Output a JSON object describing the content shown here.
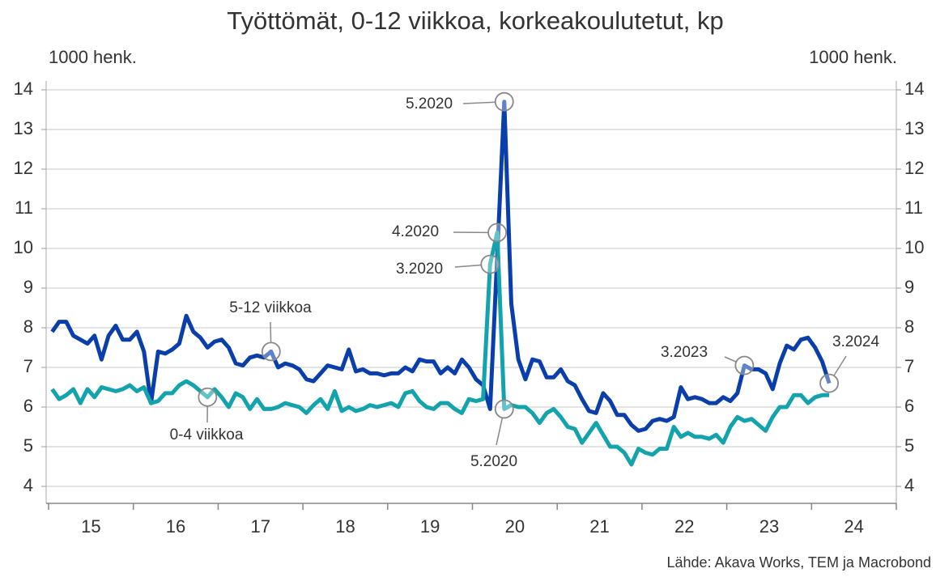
{
  "chart_data": {
    "type": "line",
    "title": "Työttömät, 0-12 viikkoa, korkeakoulutetut, kp",
    "y_label": "1000 henk.",
    "y2_label": "1000 henk.",
    "source": "Lähde: Akava Works, TEM ja Macrobond",
    "xlim": [
      2015,
      2025
    ],
    "xticks": [
      2015,
      2016,
      2017,
      2018,
      2019,
      2020,
      2021,
      2022,
      2023,
      2024,
      2025
    ],
    "xtick_labels": [
      {
        "value": 2015.5,
        "label": "15"
      },
      {
        "value": 2016.5,
        "label": "16"
      },
      {
        "value": 2017.5,
        "label": "17"
      },
      {
        "value": 2018.5,
        "label": "18"
      },
      {
        "value": 2019.5,
        "label": "19"
      },
      {
        "value": 2020.5,
        "label": "20"
      },
      {
        "value": 2021.5,
        "label": "21"
      },
      {
        "value": 2022.5,
        "label": "22"
      },
      {
        "value": 2023.5,
        "label": "23"
      },
      {
        "value": 2024.5,
        "label": "24"
      }
    ],
    "ylim": [
      4,
      14
    ],
    "yticks": [
      4,
      5,
      6,
      7,
      8,
      9,
      10,
      11,
      12,
      13,
      14
    ],
    "y2lim": [
      4,
      14
    ],
    "y2ticks": [
      4,
      5,
      6,
      7,
      8,
      9,
      10,
      11,
      12,
      13,
      14
    ],
    "grid": true,
    "x": [
      2015.042,
      2015.125,
      2015.208,
      2015.292,
      2015.375,
      2015.458,
      2015.542,
      2015.625,
      2015.708,
      2015.792,
      2015.875,
      2015.958,
      2016.042,
      2016.125,
      2016.208,
      2016.292,
      2016.375,
      2016.458,
      2016.542,
      2016.625,
      2016.708,
      2016.792,
      2016.875,
      2016.958,
      2017.042,
      2017.125,
      2017.208,
      2017.292,
      2017.375,
      2017.458,
      2017.542,
      2017.625,
      2017.708,
      2017.792,
      2017.875,
      2017.958,
      2018.042,
      2018.125,
      2018.208,
      2018.292,
      2018.375,
      2018.458,
      2018.542,
      2018.625,
      2018.708,
      2018.792,
      2018.875,
      2018.958,
      2019.042,
      2019.125,
      2019.208,
      2019.292,
      2019.375,
      2019.458,
      2019.542,
      2019.625,
      2019.708,
      2019.792,
      2019.875,
      2019.958,
      2020.042,
      2020.125,
      2020.208,
      2020.292,
      2020.375,
      2020.458,
      2020.542,
      2020.625,
      2020.708,
      2020.792,
      2020.875,
      2020.958,
      2021.042,
      2021.125,
      2021.208,
      2021.292,
      2021.375,
      2021.458,
      2021.542,
      2021.625,
      2021.708,
      2021.792,
      2021.875,
      2021.958,
      2022.042,
      2022.125,
      2022.208,
      2022.292,
      2022.375,
      2022.458,
      2022.542,
      2022.625,
      2022.708,
      2022.792,
      2022.875,
      2022.958,
      2023.042,
      2023.125,
      2023.208,
      2023.292,
      2023.375,
      2023.458,
      2023.542,
      2023.625,
      2023.708,
      2023.792,
      2023.875,
      2023.958,
      2024.042,
      2024.125,
      2024.208
    ],
    "series": [
      {
        "name": "5-12 viikkoa",
        "color": "#0a3fab",
        "values": [
          7.9,
          8.15,
          8.15,
          7.8,
          7.7,
          7.6,
          7.8,
          7.2,
          7.8,
          8.05,
          7.7,
          7.7,
          7.9,
          7.4,
          6.1,
          7.4,
          7.35,
          7.45,
          7.6,
          8.3,
          7.9,
          7.75,
          7.5,
          7.65,
          7.7,
          7.5,
          7.1,
          7.05,
          7.25,
          7.3,
          7.25,
          7.4,
          7.0,
          7.1,
          7.05,
          6.95,
          6.7,
          6.65,
          6.85,
          7.05,
          7.0,
          6.95,
          7.45,
          6.9,
          6.95,
          6.85,
          6.85,
          6.8,
          6.85,
          6.85,
          7.0,
          6.9,
          7.2,
          7.15,
          7.15,
          6.85,
          7.0,
          6.85,
          7.2,
          7.0,
          6.7,
          6.55,
          5.95,
          9.8,
          13.7,
          8.6,
          7.2,
          6.7,
          7.2,
          7.15,
          6.75,
          6.75,
          6.95,
          6.65,
          6.55,
          6.2,
          5.9,
          5.85,
          6.35,
          6.15,
          5.8,
          5.8,
          5.55,
          5.4,
          5.45,
          5.65,
          5.7,
          5.65,
          5.75,
          6.5,
          6.2,
          6.25,
          6.2,
          6.1,
          6.1,
          6.25,
          6.15,
          6.35,
          7.05,
          6.95,
          6.95,
          6.85,
          6.45,
          7.1,
          7.55,
          7.45,
          7.7,
          7.75,
          7.5,
          7.15,
          6.6
        ]
      },
      {
        "name": "0-4 viikkoa",
        "color": "#12a3ac",
        "values": [
          6.45,
          6.2,
          6.3,
          6.45,
          6.1,
          6.45,
          6.25,
          6.5,
          6.45,
          6.4,
          6.45,
          6.55,
          6.4,
          6.5,
          6.1,
          6.15,
          6.35,
          6.35,
          6.55,
          6.65,
          6.55,
          6.4,
          6.25,
          6.45,
          6.25,
          6.0,
          6.35,
          6.25,
          5.95,
          6.2,
          5.95,
          5.95,
          6.0,
          6.1,
          6.05,
          6.0,
          5.85,
          6.05,
          6.2,
          5.95,
          6.4,
          5.9,
          6.0,
          5.9,
          5.95,
          6.05,
          6.0,
          6.05,
          6.1,
          6.0,
          6.35,
          6.4,
          6.15,
          6.0,
          5.95,
          6.1,
          6.1,
          5.95,
          5.85,
          6.2,
          6.15,
          6.2,
          9.6,
          10.4,
          5.95,
          6.05,
          6.0,
          6.0,
          5.85,
          5.6,
          5.85,
          5.95,
          5.75,
          5.5,
          5.45,
          5.1,
          5.35,
          5.6,
          5.3,
          5.0,
          5.0,
          4.85,
          4.55,
          4.95,
          4.85,
          4.8,
          4.95,
          4.95,
          5.5,
          5.25,
          5.35,
          5.25,
          5.25,
          5.2,
          5.3,
          5.1,
          5.5,
          5.75,
          5.65,
          5.7,
          5.55,
          5.4,
          5.75,
          6.0,
          6.0,
          6.3,
          6.3,
          6.1,
          6.25,
          6.3,
          6.3
        ]
      }
    ],
    "annotations": [
      "5.2020",
      "4.2020",
      "3.2020",
      "5.2020",
      "3.2023",
      "3.2024"
    ]
  }
}
